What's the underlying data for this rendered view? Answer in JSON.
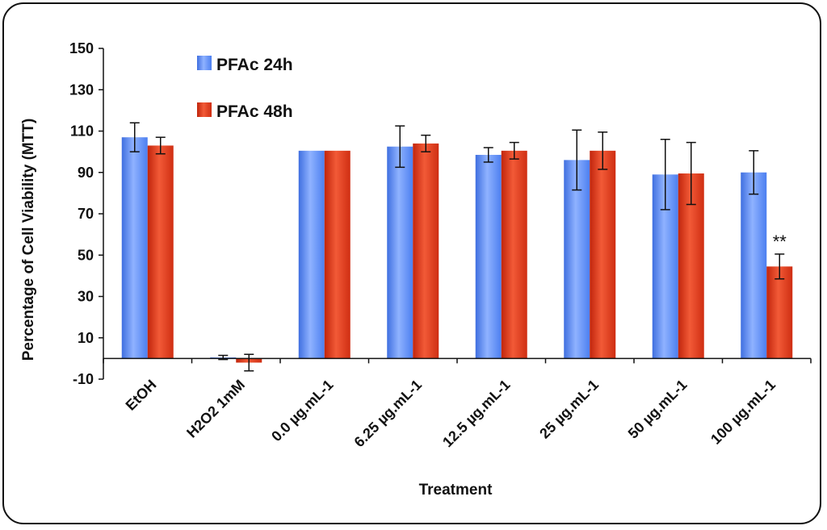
{
  "chart_data": {
    "type": "bar",
    "title": "",
    "xlabel": "Treatment",
    "ylabel": "Percentage of Cell Viability (MTT)",
    "ylim": [
      -10,
      150
    ],
    "yticks": [
      -10,
      10,
      30,
      50,
      70,
      90,
      110,
      130,
      150
    ],
    "grid": false,
    "legend_position": "top-left",
    "categories": [
      "EtOH",
      "H2O2 1mM",
      "0.0 µg.mL-1",
      "6.25 µg.mL-1",
      "12.5 µg.mL-1",
      "25 µg.mL-1",
      "50 µg.mL-1",
      "100 µg.mL-1"
    ],
    "series": [
      {
        "name": "PFAc 24h",
        "color": "#5b8ff0",
        "values": [
          107,
          0.5,
          100.5,
          102.5,
          98.5,
          96,
          89,
          90
        ],
        "errors": [
          7,
          1,
          0,
          10,
          3.5,
          14.5,
          17,
          10.5
        ]
      },
      {
        "name": "PFAc 48h",
        "color": "#dd3b1e",
        "values": [
          103,
          -2,
          100.5,
          104,
          100.5,
          100.5,
          89.5,
          44.5
        ],
        "errors": [
          4,
          4,
          0,
          4,
          4,
          9,
          15,
          6
        ]
      }
    ],
    "annotations": [
      {
        "text": "**",
        "category_index": 7,
        "series_index": 1
      }
    ]
  }
}
